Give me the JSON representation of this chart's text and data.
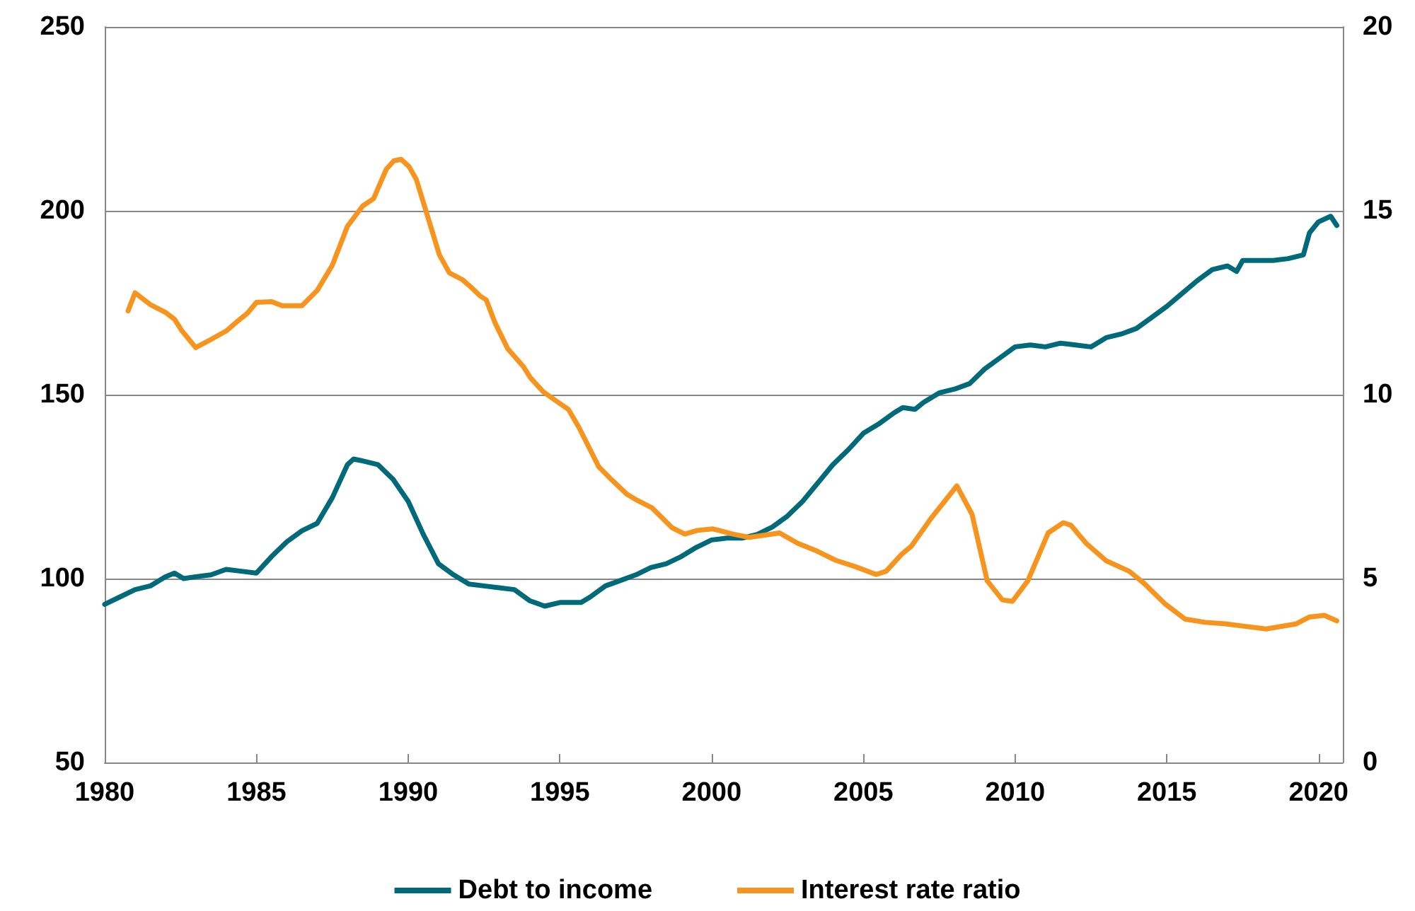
{
  "chart_data": {
    "type": "line",
    "xlim": [
      1980,
      2020.8
    ],
    "xticks": [
      1980,
      1985,
      1990,
      1995,
      2000,
      2005,
      2010,
      2015,
      2020
    ],
    "ylim": [
      50,
      250
    ],
    "yticks": [
      50,
      100,
      150,
      200,
      250
    ],
    "y2lim": [
      0,
      20
    ],
    "y2ticks": [
      0,
      5,
      10,
      15,
      20
    ],
    "grid": "y",
    "legend": "bottom",
    "marker": "none",
    "line_style": "solid",
    "series": [
      {
        "name": "Debt to income",
        "color": "#006a7a",
        "x": [
          1980,
          1980.5,
          1981,
          1981.5,
          1982,
          1982.3,
          1982.6,
          1983,
          1983.5,
          1984,
          1984.5,
          1985,
          1985.5,
          1986,
          1986.5,
          1987,
          1987.5,
          1988,
          1988.2,
          1988.5,
          1989,
          1989.5,
          1990,
          1990.5,
          1991,
          1991.5,
          1992,
          1992.5,
          1993,
          1993.5,
          1994,
          1994.5,
          1995,
          1995.7,
          1996,
          1996.5,
          1997,
          1997.5,
          1998,
          1998.5,
          1999,
          1999.5,
          2000,
          2000.5,
          2001,
          2001.5,
          2002,
          2002.5,
          2003,
          2003.5,
          2004,
          2004.5,
          2005,
          2005.5,
          2006,
          2006.3,
          2006.7,
          2007,
          2007.5,
          2008,
          2008.5,
          2009,
          2009.5,
          2010,
          2010.5,
          2011,
          2011.5,
          2012,
          2012.5,
          2013,
          2013.5,
          2014,
          2014.5,
          2015,
          2015.5,
          2016,
          2016.5,
          2017,
          2017.3,
          2017.5,
          2018,
          2018.5,
          2019,
          2019.5,
          2019.7,
          2020,
          2020.4,
          2020.6
        ],
        "values": [
          93,
          95,
          97,
          98,
          100.5,
          101.5,
          100,
          100.5,
          101,
          102.5,
          102,
          101.5,
          106,
          110,
          113,
          115,
          122,
          131,
          132.5,
          132,
          131,
          127,
          121,
          112,
          104,
          101,
          98.5,
          98,
          97.5,
          97,
          94,
          92.5,
          93.5,
          93.5,
          95,
          98,
          99.5,
          101,
          103,
          104,
          106,
          108.5,
          110.5,
          111,
          111,
          112,
          114,
          117,
          121,
          126,
          131,
          135,
          139.5,
          142,
          145,
          146.5,
          146,
          148,
          150.5,
          151.5,
          153,
          157,
          160,
          163,
          163.5,
          163,
          164,
          163.5,
          163,
          165.5,
          166.5,
          168,
          171,
          174,
          177.5,
          181,
          184,
          185,
          183.5,
          186.5,
          186.5,
          186.5,
          187,
          188,
          194,
          197,
          198.5,
          196
        ]
      },
      {
        "name": "Interest rate ratio",
        "color": "#f7941d",
        "axis": "y2",
        "x": [
          1980.77,
          1981.0,
          1981.5,
          1982.0,
          1982.3,
          1982.55,
          1983.0,
          1983.5,
          1984.0,
          1984.35,
          1984.7,
          1985.0,
          1985.5,
          1985.85,
          1986.5,
          1987.0,
          1987.5,
          1988.0,
          1988.5,
          1988.86,
          1989.28,
          1989.53,
          1989.77,
          1990.03,
          1990.27,
          1990.7,
          1991.03,
          1991.36,
          1991.78,
          1992.1,
          1992.36,
          1992.57,
          1992.87,
          1993.28,
          1993.79,
          1994.03,
          1994.45,
          1994.79,
          1995.28,
          1995.62,
          1996.28,
          1996.7,
          1997.2,
          1997.54,
          1998.04,
          1998.7,
          1999.12,
          1999.53,
          2000.04,
          2000.7,
          2001.24,
          2002.24,
          2002.83,
          2003.41,
          2004.08,
          2004.75,
          2005.42,
          2005.75,
          2006.25,
          2006.58,
          2007.24,
          2007.58,
          2008.08,
          2008.58,
          2009.08,
          2009.58,
          2009.91,
          2010.42,
          2011.09,
          2011.59,
          2011.84,
          2012.34,
          2013.01,
          2013.76,
          2014.25,
          2014.93,
          2015.6,
          2016.26,
          2016.93,
          2017.6,
          2018.27,
          2019.27,
          2019.68,
          2020.19,
          2020.6
        ],
        "values": [
          12.28,
          12.77,
          12.45,
          12.24,
          12.05,
          11.73,
          11.28,
          11.5,
          11.73,
          11.98,
          12.21,
          12.51,
          12.53,
          12.42,
          12.42,
          12.83,
          13.52,
          14.58,
          15.13,
          15.33,
          16.13,
          16.36,
          16.4,
          16.2,
          15.85,
          14.69,
          13.8,
          13.31,
          13.13,
          12.9,
          12.69,
          12.58,
          11.94,
          11.25,
          10.77,
          10.46,
          10.08,
          9.88,
          9.6,
          9.12,
          8.04,
          7.69,
          7.3,
          7.13,
          6.92,
          6.38,
          6.21,
          6.31,
          6.35,
          6.21,
          6.12,
          6.24,
          5.96,
          5.77,
          5.5,
          5.32,
          5.11,
          5.2,
          5.65,
          5.88,
          6.65,
          7.0,
          7.52,
          6.75,
          4.94,
          4.42,
          4.38,
          4.94,
          6.24,
          6.52,
          6.45,
          5.96,
          5.48,
          5.2,
          4.87,
          4.32,
          3.9,
          3.81,
          3.77,
          3.7,
          3.63,
          3.77,
          3.95,
          4.0,
          3.85
        ]
      }
    ]
  }
}
